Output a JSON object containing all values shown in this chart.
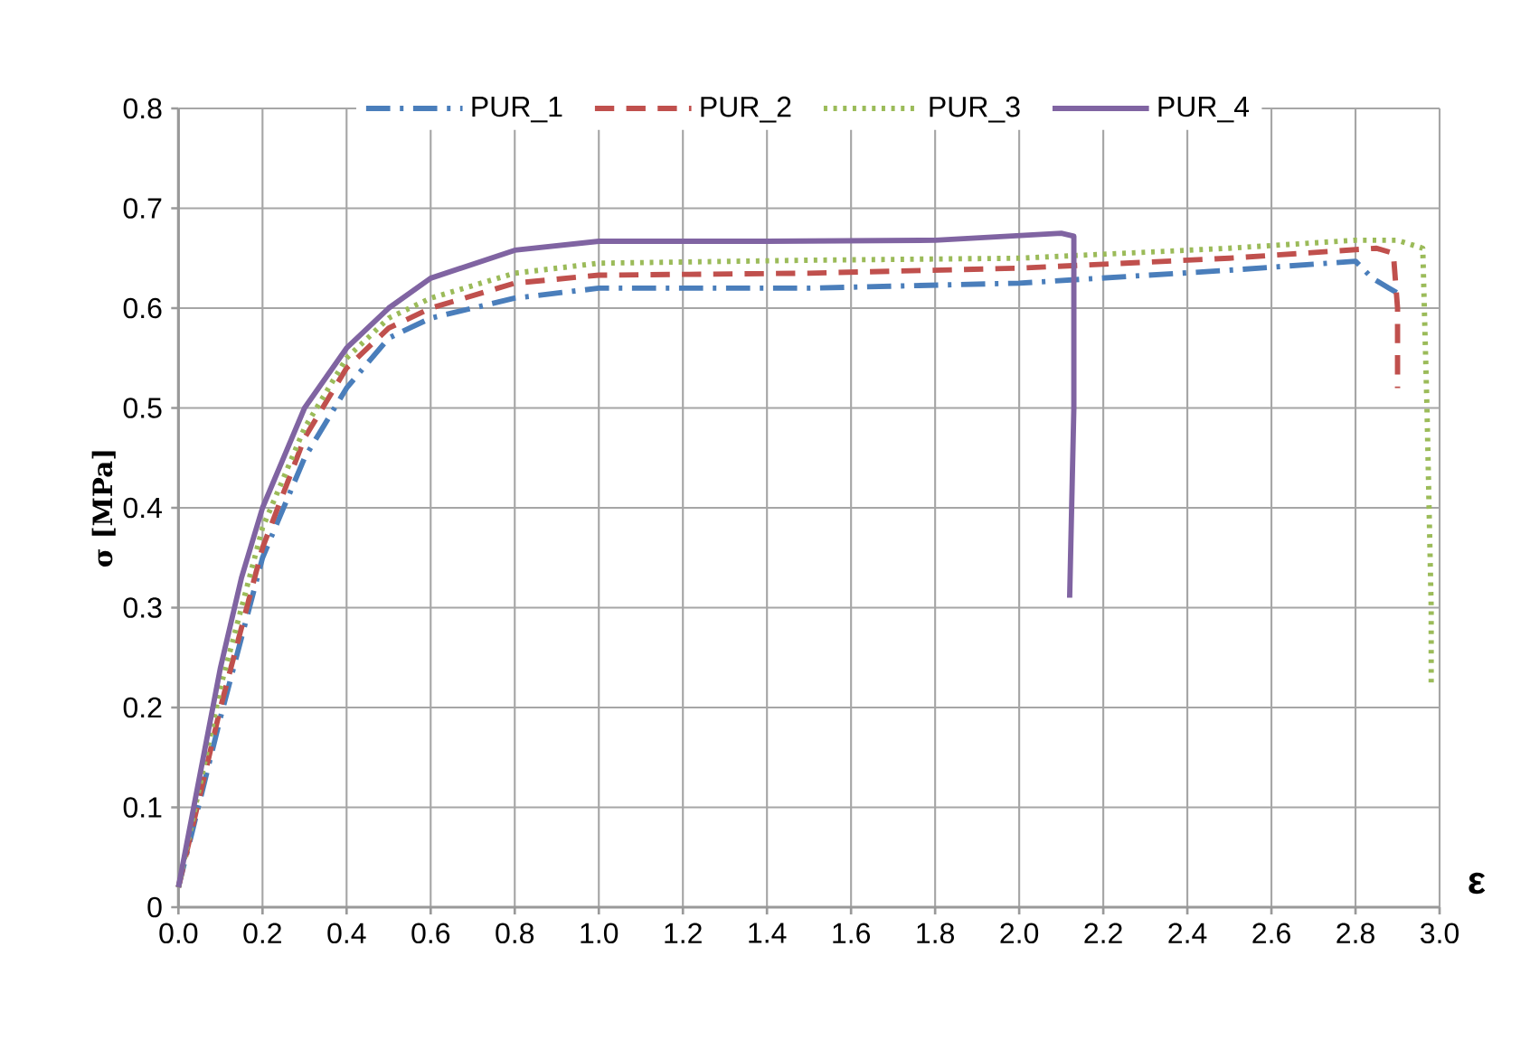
{
  "chart_data": {
    "type": "line",
    "xlabel": "ε",
    "ylabel": "σ [MPa]",
    "xlim": [
      0,
      3.0
    ],
    "ylim": [
      0,
      0.8
    ],
    "xticks": [
      {
        "value": 0,
        "label": "0.0"
      },
      {
        "value": 0.2,
        "label": "0.2"
      },
      {
        "value": 0.4,
        "label": "0.4"
      },
      {
        "value": 0.6,
        "label": "0.6"
      },
      {
        "value": 0.8,
        "label": "0.8"
      },
      {
        "value": 1.0,
        "label": "1.0"
      },
      {
        "value": 1.2,
        "label": "1.2"
      },
      {
        "value": 1.4,
        "label": "1.4"
      },
      {
        "value": 1.6,
        "label": "1.6"
      },
      {
        "value": 1.8,
        "label": "1.8"
      },
      {
        "value": 2.0,
        "label": "2.0"
      },
      {
        "value": 2.2,
        "label": "2.2"
      },
      {
        "value": 2.4,
        "label": "2.4"
      },
      {
        "value": 2.6,
        "label": "2.6"
      },
      {
        "value": 2.8,
        "label": "2.8"
      },
      {
        "value": 3.0,
        "label": "3.0"
      }
    ],
    "yticks": [
      0,
      0.1,
      0.2,
      0.3,
      0.4,
      0.5,
      0.6,
      0.7,
      0.8
    ],
    "grid": true,
    "legend": "top",
    "marker": "none",
    "series": [
      {
        "name": "PUR_1",
        "color": "#4a7ebb",
        "line_style": "dashdot",
        "x": [
          0,
          0.1,
          0.2,
          0.3,
          0.4,
          0.5,
          0.6,
          0.8,
          1.0,
          1.5,
          2.0,
          2.5,
          2.8,
          2.84,
          2.88,
          2.9
        ],
        "values": [
          0.02,
          0.19,
          0.35,
          0.45,
          0.52,
          0.57,
          0.59,
          0.61,
          0.62,
          0.62,
          0.625,
          0.638,
          0.647,
          0.63,
          0.62,
          0.615
        ]
      },
      {
        "name": "PUR_2",
        "color": "#c0504d",
        "line_style": "dashed",
        "x": [
          0,
          0.1,
          0.2,
          0.3,
          0.4,
          0.5,
          0.6,
          0.8,
          1.0,
          1.5,
          2.0,
          2.5,
          2.85,
          2.89,
          2.9,
          2.9
        ],
        "values": [
          0.02,
          0.2,
          0.36,
          0.47,
          0.54,
          0.58,
          0.6,
          0.625,
          0.633,
          0.635,
          0.64,
          0.65,
          0.66,
          0.655,
          0.6,
          0.52
        ]
      },
      {
        "name": "PUR_3",
        "color": "#9bbb59",
        "line_style": "dotted",
        "x": [
          0,
          0.1,
          0.2,
          0.3,
          0.4,
          0.5,
          0.6,
          0.8,
          1.0,
          1.5,
          2.0,
          2.5,
          2.8,
          2.9,
          2.96,
          2.97,
          2.98,
          2.98
        ],
        "values": [
          0.02,
          0.22,
          0.38,
          0.48,
          0.55,
          0.59,
          0.61,
          0.635,
          0.645,
          0.648,
          0.65,
          0.66,
          0.668,
          0.668,
          0.66,
          0.5,
          0.3,
          0.22
        ]
      },
      {
        "name": "PUR_4",
        "color": "#8064a2",
        "line_style": "solid",
        "x": [
          0,
          0.05,
          0.1,
          0.15,
          0.2,
          0.3,
          0.4,
          0.5,
          0.6,
          0.8,
          1.0,
          1.4,
          1.8,
          2.1,
          2.13,
          2.13,
          2.12
        ],
        "values": [
          0.02,
          0.13,
          0.24,
          0.33,
          0.4,
          0.5,
          0.56,
          0.6,
          0.63,
          0.658,
          0.667,
          0.667,
          0.668,
          0.675,
          0.672,
          0.5,
          0.31
        ]
      }
    ]
  }
}
